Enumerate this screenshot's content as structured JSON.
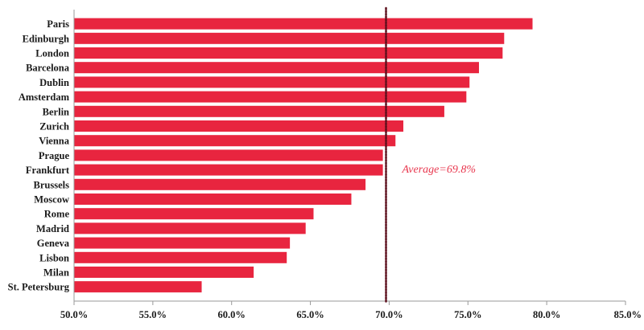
{
  "chart_data": {
    "type": "bar",
    "orientation": "horizontal",
    "categories": [
      "Paris",
      "Edinburgh",
      "London",
      "Barcelona",
      "Dublin",
      "Amsterdam",
      "Berlin",
      "Zurich",
      "Vienna",
      "Prague",
      "Frankfurt",
      "Brussels",
      "Moscow",
      "Rome",
      "Madrid",
      "Geneva",
      "Lisbon",
      "Milan",
      "St. Petersburg"
    ],
    "values": [
      79.1,
      77.3,
      77.2,
      75.7,
      75.1,
      74.9,
      73.5,
      70.9,
      70.4,
      69.6,
      69.6,
      68.5,
      67.6,
      65.2,
      64.7,
      63.7,
      63.5,
      61.4,
      58.1
    ],
    "xlim": [
      50,
      85
    ],
    "xticks": [
      50,
      55,
      60,
      65,
      70,
      75,
      80,
      85
    ],
    "xtick_labels": [
      "50.0%",
      "55.0%",
      "60.0%",
      "65.0%",
      "70.0%",
      "75.0%",
      "80.0%",
      "85.0%"
    ],
    "average": 69.8,
    "average_label": "Average=69.8%",
    "colors": {
      "bar": "#e8253f",
      "average_line": "#5c0f1c",
      "axis": "#999999"
    },
    "grid": false
  }
}
